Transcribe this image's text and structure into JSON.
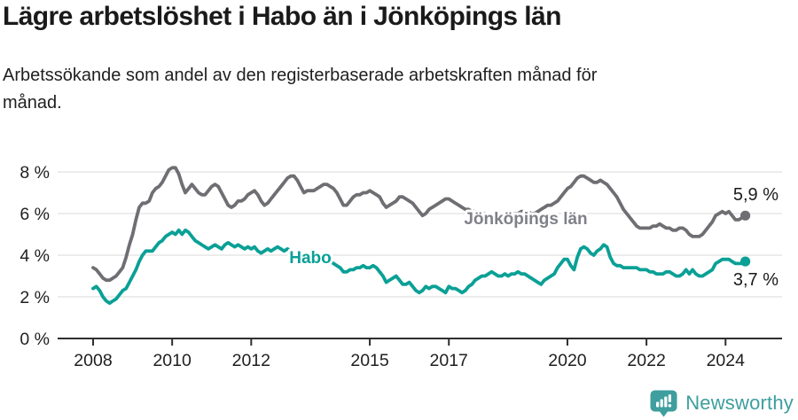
{
  "header": {
    "title": "Lägre arbetslöshet i Habo än i Jönköpings län",
    "subtitle": "Arbetssökande som andel av den registerbaserade arbetskraften månad för månad."
  },
  "footer": {
    "brand": "Newsworthy",
    "logo_icon": "bar-chart-speech-bubble-icon",
    "brand_color": "#3f9e9e"
  },
  "chart_data": {
    "type": "line",
    "title": "Lägre arbetslöshet i Habo än i Jönköpings län",
    "xlabel": "",
    "ylabel": "",
    "x_unit": "month",
    "x_range": [
      "2008-01",
      "2024-07"
    ],
    "points_per_year": 12,
    "x_ticks": [
      2008,
      2010,
      2012,
      2015,
      2017,
      2020,
      2022,
      2024
    ],
    "y_ticks": [
      0,
      2,
      4,
      6,
      8
    ],
    "y_tick_suffix": " %",
    "ylim": [
      0,
      8.8
    ],
    "grid": true,
    "legend_position": "inline-on-line",
    "axis_color": "#2e2e2e",
    "grid_color": "#d9d9d9",
    "series": [
      {
        "name": "Jönköpings län",
        "color": "#6e6e73",
        "label_color": "#80808a",
        "end_label": "5,9 %",
        "end_value": 5.9,
        "values": [
          3.4,
          3.3,
          3.1,
          2.9,
          2.8,
          2.8,
          2.9,
          3.0,
          3.2,
          3.4,
          3.9,
          4.5,
          5.0,
          5.7,
          6.3,
          6.5,
          6.5,
          6.6,
          7.0,
          7.2,
          7.3,
          7.5,
          7.8,
          8.1,
          8.2,
          8.2,
          7.9,
          7.4,
          7.0,
          7.2,
          7.4,
          7.2,
          7.0,
          6.9,
          6.9,
          7.1,
          7.3,
          7.4,
          7.3,
          7.0,
          6.7,
          6.4,
          6.3,
          6.4,
          6.6,
          6.6,
          6.7,
          6.9,
          7.0,
          7.1,
          6.9,
          6.6,
          6.4,
          6.5,
          6.7,
          6.9,
          7.1,
          7.3,
          7.5,
          7.7,
          7.8,
          7.8,
          7.6,
          7.3,
          7.0,
          7.1,
          7.1,
          7.1,
          7.2,
          7.3,
          7.4,
          7.4,
          7.3,
          7.2,
          7.0,
          6.7,
          6.4,
          6.4,
          6.6,
          6.8,
          6.9,
          6.9,
          7.0,
          7.0,
          7.1,
          7.0,
          6.9,
          6.8,
          6.5,
          6.3,
          6.4,
          6.5,
          6.6,
          6.8,
          6.8,
          6.7,
          6.6,
          6.5,
          6.3,
          6.1,
          5.9,
          6.0,
          6.2,
          6.3,
          6.4,
          6.5,
          6.6,
          6.7,
          6.7,
          6.6,
          6.5,
          6.4,
          6.3,
          6.2,
          6.2,
          6.1,
          6.1,
          6.0,
          6.0,
          6.0,
          5.9,
          5.9,
          5.8,
          5.8,
          5.8,
          5.9,
          5.9,
          6.0,
          6.0,
          6.0,
          6.1,
          6.1,
          6.1,
          6.0,
          6.0,
          6.1,
          6.2,
          6.3,
          6.4,
          6.4,
          6.5,
          6.6,
          6.8,
          7.0,
          7.2,
          7.3,
          7.5,
          7.7,
          7.8,
          7.8,
          7.7,
          7.6,
          7.5,
          7.5,
          7.6,
          7.5,
          7.4,
          7.2,
          7.0,
          6.8,
          6.5,
          6.2,
          6.0,
          5.8,
          5.6,
          5.4,
          5.3,
          5.3,
          5.3,
          5.3,
          5.4,
          5.4,
          5.5,
          5.4,
          5.3,
          5.3,
          5.2,
          5.2,
          5.3,
          5.3,
          5.2,
          5.0,
          4.9,
          4.9,
          4.9,
          5.0,
          5.2,
          5.4,
          5.6,
          5.9,
          6.0,
          6.1,
          6.0,
          6.1,
          5.9,
          5.7,
          5.7,
          5.8,
          5.9
        ]
      },
      {
        "name": "Habo",
        "color": "#0aa096",
        "label_color": "#0aa096",
        "end_label": "3,7 %",
        "end_value": 3.7,
        "values": [
          2.4,
          2.5,
          2.3,
          2.0,
          1.8,
          1.7,
          1.8,
          1.9,
          2.1,
          2.3,
          2.4,
          2.7,
          3.0,
          3.3,
          3.7,
          4.0,
          4.2,
          4.2,
          4.2,
          4.4,
          4.6,
          4.7,
          4.9,
          5.0,
          5.1,
          5.0,
          5.2,
          5.0,
          5.2,
          5.1,
          4.9,
          4.7,
          4.6,
          4.5,
          4.4,
          4.3,
          4.4,
          4.5,
          4.4,
          4.3,
          4.5,
          4.6,
          4.5,
          4.4,
          4.5,
          4.4,
          4.3,
          4.4,
          4.3,
          4.4,
          4.2,
          4.1,
          4.2,
          4.3,
          4.2,
          4.3,
          4.4,
          4.3,
          4.2,
          4.3,
          4.2,
          4.1,
          4.0,
          4.0,
          3.9,
          4.0,
          4.1,
          4.0,
          3.9,
          3.8,
          3.7,
          3.7,
          3.7,
          3.6,
          3.5,
          3.4,
          3.2,
          3.2,
          3.3,
          3.3,
          3.4,
          3.4,
          3.5,
          3.4,
          3.4,
          3.5,
          3.4,
          3.2,
          3.0,
          2.7,
          2.8,
          2.9,
          3.0,
          2.8,
          2.6,
          2.6,
          2.7,
          2.5,
          2.3,
          2.2,
          2.3,
          2.5,
          2.4,
          2.5,
          2.5,
          2.4,
          2.3,
          2.2,
          2.5,
          2.4,
          2.4,
          2.3,
          2.2,
          2.3,
          2.5,
          2.6,
          2.8,
          2.9,
          3.0,
          3.0,
          3.1,
          3.2,
          3.1,
          3.0,
          3.0,
          3.1,
          3.0,
          3.1,
          3.1,
          3.2,
          3.1,
          3.1,
          3.0,
          2.9,
          2.8,
          2.7,
          2.6,
          2.8,
          2.9,
          3.0,
          3.1,
          3.4,
          3.6,
          3.8,
          3.8,
          3.5,
          3.3,
          3.9,
          4.3,
          4.4,
          4.3,
          4.1,
          4.0,
          4.2,
          4.3,
          4.5,
          4.4,
          3.9,
          3.6,
          3.5,
          3.5,
          3.4,
          3.4,
          3.4,
          3.4,
          3.4,
          3.3,
          3.3,
          3.3,
          3.2,
          3.2,
          3.1,
          3.1,
          3.1,
          3.2,
          3.2,
          3.1,
          3.0,
          3.0,
          3.1,
          3.3,
          3.1,
          3.3,
          3.1,
          3.0,
          3.0,
          3.1,
          3.2,
          3.3,
          3.6,
          3.7,
          3.8,
          3.8,
          3.8,
          3.7,
          3.6,
          3.6,
          3.6,
          3.7
        ]
      }
    ]
  }
}
